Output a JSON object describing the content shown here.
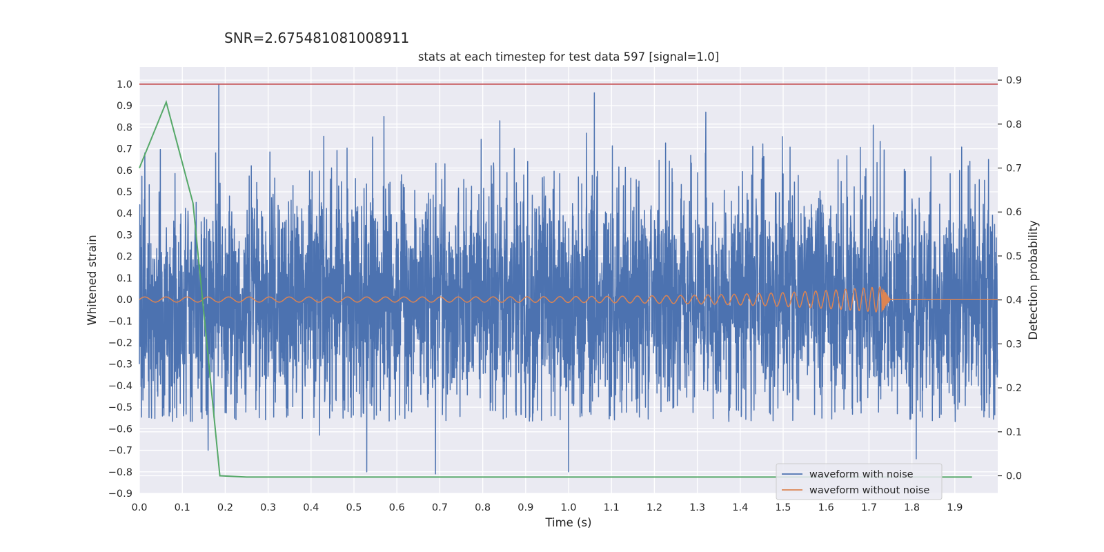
{
  "suptitle": "SNR=2.675481081008911",
  "chart_data": {
    "type": "line",
    "title": "stats at each timestep for test data 597 [signal=1.0]",
    "xlabel": "Time (s)",
    "ylabel": "Whitened strain",
    "y2label": "Detection probability",
    "xlim": [
      0.0,
      2.0
    ],
    "ylim": [
      -0.9,
      1.08
    ],
    "y2lim": [
      -0.04,
      0.93
    ],
    "x_ticks": [
      0.0,
      0.1,
      0.2,
      0.3,
      0.4,
      0.5,
      0.6,
      0.7,
      0.8,
      0.9,
      1.0,
      1.1,
      1.2,
      1.3,
      1.4,
      1.5,
      1.6,
      1.7,
      1.8,
      1.9
    ],
    "x_tick_labels": [
      "0.0",
      "0.1",
      "0.2",
      "0.3",
      "0.4",
      "0.5",
      "0.6",
      "0.7",
      "0.8",
      "0.9",
      "1.0",
      "1.1",
      "1.2",
      "1.3",
      "1.4",
      "1.5",
      "1.6",
      "1.7",
      "1.8",
      "1.9"
    ],
    "y_ticks": [
      1.0,
      0.9,
      0.8,
      0.7,
      0.6,
      0.5,
      0.4,
      0.3,
      0.2,
      0.1,
      0.0,
      -0.1,
      -0.2,
      -0.3,
      -0.4,
      -0.5,
      -0.6,
      -0.7,
      -0.8,
      -0.9
    ],
    "y_tick_labels": [
      "1.0",
      "0.9",
      "0.8",
      "0.7",
      "0.6",
      "0.5",
      "0.4",
      "0.3",
      "0.2",
      "0.1",
      "0.0",
      "−0.1",
      "−0.2",
      "−0.3",
      "−0.4",
      "−0.5",
      "−0.6",
      "−0.7",
      "−0.8",
      "−0.9"
    ],
    "y2_ticks": [
      0.9,
      0.8,
      0.7,
      0.6,
      0.5,
      0.4,
      0.3,
      0.2,
      0.1,
      0.0
    ],
    "y2_tick_labels": [
      "0.9",
      "0.8",
      "0.7",
      "0.6",
      "0.5",
      "0.4",
      "0.3",
      "0.2",
      "0.1",
      "0.0"
    ],
    "grid": true,
    "legend_position": "lower-right",
    "legend": [
      "waveform with noise",
      "waveform without noise"
    ],
    "series": [
      {
        "name": "waveform with noise",
        "color": "#4c72b0",
        "axis": "left",
        "sample_rate_hz": 2048,
        "duration_s": 2.0,
        "std": 0.27,
        "min": -0.81,
        "max": 1.0,
        "peaks": [
          {
            "x": 0.185,
            "y": 1.0
          },
          {
            "x": 0.57,
            "y": 0.85
          },
          {
            "x": 0.84,
            "y": 0.83
          },
          {
            "x": 1.06,
            "y": 0.96
          },
          {
            "x": 1.32,
            "y": 0.87
          },
          {
            "x": 1.71,
            "y": 0.81
          },
          {
            "x": 0.69,
            "y": -0.81
          },
          {
            "x": 0.53,
            "y": -0.8
          },
          {
            "x": 1.0,
            "y": -0.8
          },
          {
            "x": 1.81,
            "y": -0.74
          },
          {
            "x": 0.16,
            "y": -0.7
          },
          {
            "x": 0.42,
            "y": -0.63
          }
        ]
      },
      {
        "name": "waveform without noise",
        "color": "#dd8452",
        "axis": "left",
        "description": "chirp: frequency and amplitude increase, merger at ~1.73 s, then flat",
        "amplitude_start": 0.012,
        "amplitude_peak": 0.06,
        "merger_time": 1.73,
        "f_start_hz": 20
      },
      {
        "name": "detection probability",
        "color": "#55a868",
        "axis": "right",
        "x": [
          0.0,
          0.0625,
          0.125,
          0.1875,
          0.25,
          1.94
        ],
        "y": [
          0.7,
          0.85,
          0.62,
          0.0,
          -0.003,
          -0.003
        ]
      }
    ],
    "threshold_line": {
      "y": 1.0,
      "color": "#c44e52"
    }
  }
}
